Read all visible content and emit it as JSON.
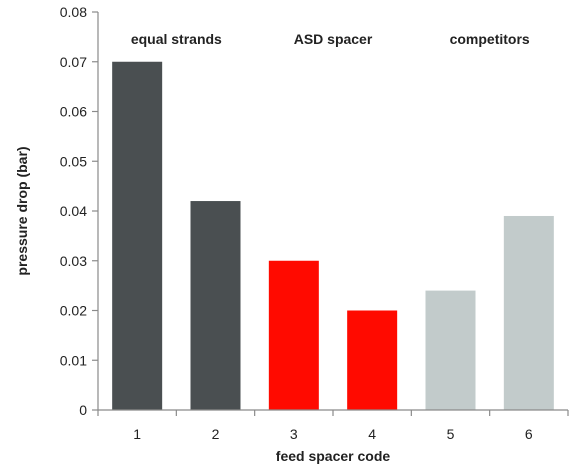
{
  "chart_data": {
    "type": "bar",
    "title": "",
    "xlabel": "feed spacer code",
    "ylabel": "pressure drop (bar)",
    "categories": [
      "1",
      "2",
      "3",
      "4",
      "5",
      "6"
    ],
    "values": [
      0.07,
      0.042,
      0.03,
      0.02,
      0.024,
      0.039
    ],
    "bar_colors": [
      "#4a4f51",
      "#4a4f51",
      "#ff0a00",
      "#ff0a00",
      "#c2cbcb",
      "#c2cbcb"
    ],
    "ylim": [
      0,
      0.08
    ],
    "yticks": [
      "0",
      "0.01",
      "0.02",
      "0.03",
      "0.04",
      "0.05",
      "0.06",
      "0.07",
      "0.08"
    ],
    "grid": false,
    "groups": [
      {
        "label": "equal strands",
        "categories": [
          "1",
          "2"
        ]
      },
      {
        "label": "ASD spacer",
        "categories": [
          "3",
          "4"
        ]
      },
      {
        "label": "competitors",
        "categories": [
          "5",
          "6"
        ]
      }
    ]
  }
}
